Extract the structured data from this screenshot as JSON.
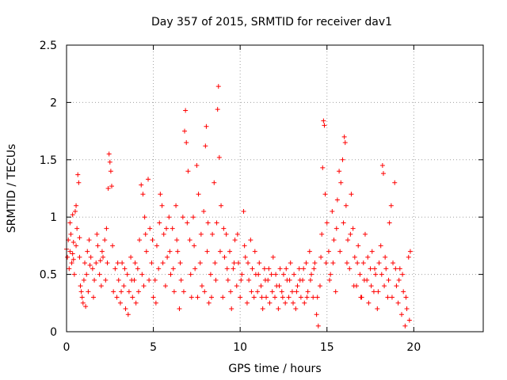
{
  "chart_data": {
    "type": "scatter",
    "title": "Day 357 of 2015, SRMTID for receiver dav1",
    "xlabel": "GPS time / hours",
    "ylabel": "SRMTID / TECUs",
    "xlim": [
      0,
      24
    ],
    "ylim": [
      0,
      2.5
    ],
    "xticks": [
      0,
      5,
      10,
      15,
      20
    ],
    "xtick_labels": [
      "0",
      "5",
      "10",
      "15",
      "20"
    ],
    "yticks": [
      0,
      0.5,
      1,
      1.5,
      2,
      2.5
    ],
    "ytick_labels": [
      "0",
      "0.5",
      "1",
      "1.5",
      "2",
      "2.5"
    ],
    "grid": true,
    "marker": "+",
    "color": "#ff0000",
    "series": [
      {
        "name": "dav1",
        "points": [
          [
            0.0,
            0.72
          ],
          [
            0.05,
            0.65
          ],
          [
            0.1,
            0.8
          ],
          [
            0.15,
            0.55
          ],
          [
            0.2,
            0.7
          ],
          [
            0.25,
            0.85
          ],
          [
            0.3,
            0.6
          ],
          [
            0.35,
            0.68
          ],
          [
            0.4,
            0.78
          ],
          [
            0.45,
            0.5
          ],
          [
            0.5,
            1.05
          ],
          [
            0.55,
            1.1
          ],
          [
            0.6,
            0.9
          ],
          [
            0.65,
            1.37
          ],
          [
            0.7,
            1.3
          ],
          [
            0.75,
            0.65
          ],
          [
            0.8,
            0.4
          ],
          [
            0.85,
            0.35
          ],
          [
            0.9,
            0.3
          ],
          [
            0.95,
            0.25
          ],
          [
            1.0,
            0.45
          ],
          [
            1.05,
            0.6
          ],
          [
            1.1,
            0.22
          ],
          [
            1.15,
            0.5
          ],
          [
            1.2,
            0.7
          ],
          [
            1.3,
            0.8
          ],
          [
            1.4,
            0.65
          ],
          [
            1.5,
            0.55
          ],
          [
            1.6,
            0.45
          ],
          [
            1.7,
            0.6
          ],
          [
            1.8,
            0.75
          ],
          [
            1.9,
            0.5
          ],
          [
            2.0,
            0.4
          ],
          [
            2.1,
            0.65
          ],
          [
            2.2,
            0.8
          ],
          [
            2.3,
            0.9
          ],
          [
            2.4,
            1.25
          ],
          [
            2.45,
            1.55
          ],
          [
            2.5,
            1.48
          ],
          [
            2.55,
            1.4
          ],
          [
            2.6,
            1.27
          ],
          [
            2.7,
            0.35
          ],
          [
            2.8,
            0.55
          ],
          [
            2.9,
            0.3
          ],
          [
            3.0,
            0.45
          ],
          [
            3.1,
            0.25
          ],
          [
            3.2,
            0.6
          ],
          [
            3.3,
            0.4
          ],
          [
            3.4,
            0.2
          ],
          [
            3.5,
            0.5
          ],
          [
            3.6,
            0.35
          ],
          [
            3.7,
            0.65
          ],
          [
            3.8,
            0.3
          ],
          [
            3.9,
            0.45
          ],
          [
            4.0,
            0.25
          ],
          [
            4.1,
            0.55
          ],
          [
            4.2,
            0.8
          ],
          [
            4.3,
            1.28
          ],
          [
            4.4,
            1.2
          ],
          [
            4.5,
            1.0
          ],
          [
            4.6,
            0.7
          ],
          [
            4.7,
            1.33
          ],
          [
            4.8,
            0.9
          ],
          [
            4.9,
            0.6
          ],
          [
            5.0,
            0.3
          ],
          [
            5.1,
            0.45
          ],
          [
            5.2,
            0.75
          ],
          [
            5.3,
            0.55
          ],
          [
            5.4,
            1.2
          ],
          [
            5.5,
            1.1
          ],
          [
            5.6,
            0.85
          ],
          [
            5.7,
            0.4
          ],
          [
            5.8,
            0.65
          ],
          [
            5.9,
            1.0
          ],
          [
            6.0,
            0.5
          ],
          [
            6.1,
            0.9
          ],
          [
            6.2,
            0.35
          ],
          [
            6.3,
            1.1
          ],
          [
            6.4,
            0.7
          ],
          [
            6.5,
            0.2
          ],
          [
            6.6,
            0.45
          ],
          [
            6.7,
            1.0
          ],
          [
            6.8,
            1.75
          ],
          [
            6.85,
            1.93
          ],
          [
            6.9,
            1.65
          ],
          [
            7.0,
            1.4
          ],
          [
            7.1,
            0.8
          ],
          [
            7.2,
            0.3
          ],
          [
            7.3,
            1.0
          ],
          [
            7.4,
            0.55
          ],
          [
            7.5,
            1.45
          ],
          [
            7.6,
            1.2
          ],
          [
            7.7,
            0.6
          ],
          [
            7.8,
            0.4
          ],
          [
            7.9,
            1.05
          ],
          [
            8.0,
            1.62
          ],
          [
            8.05,
            1.79
          ],
          [
            8.1,
            0.7
          ],
          [
            8.2,
            0.25
          ],
          [
            8.3,
            0.5
          ],
          [
            8.4,
            0.85
          ],
          [
            8.5,
            1.3
          ],
          [
            8.6,
            0.45
          ],
          [
            8.7,
            1.94
          ],
          [
            8.75,
            2.14
          ],
          [
            8.8,
            1.52
          ],
          [
            8.9,
            1.1
          ],
          [
            9.0,
            0.3
          ],
          [
            9.1,
            0.65
          ],
          [
            9.2,
            0.85
          ],
          [
            9.3,
            0.45
          ],
          [
            9.4,
            0.7
          ],
          [
            9.5,
            0.2
          ],
          [
            9.6,
            0.55
          ],
          [
            9.7,
            0.8
          ],
          [
            9.8,
            0.4
          ],
          [
            9.9,
            0.6
          ],
          [
            10.0,
            0.3
          ],
          [
            10.1,
            0.5
          ],
          [
            10.2,
            1.05
          ],
          [
            10.3,
            0.65
          ],
          [
            10.4,
            0.25
          ],
          [
            10.5,
            0.45
          ],
          [
            10.6,
            0.8
          ],
          [
            10.7,
            0.55
          ],
          [
            10.8,
            0.3
          ],
          [
            10.9,
            0.5
          ],
          [
            11.0,
            0.35
          ],
          [
            11.1,
            0.6
          ],
          [
            11.2,
            0.4
          ],
          [
            11.3,
            0.2
          ],
          [
            11.4,
            0.55
          ],
          [
            11.5,
            0.3
          ],
          [
            11.6,
            0.45
          ],
          [
            11.7,
            0.25
          ],
          [
            11.8,
            0.5
          ],
          [
            11.9,
            0.65
          ],
          [
            12.0,
            0.3
          ],
          [
            12.1,
            0.4
          ],
          [
            12.2,
            0.2
          ],
          [
            12.3,
            0.55
          ],
          [
            12.4,
            0.35
          ],
          [
            12.5,
            0.5
          ],
          [
            12.6,
            0.25
          ],
          [
            12.7,
            0.45
          ],
          [
            12.8,
            0.3
          ],
          [
            12.9,
            0.6
          ],
          [
            13.0,
            0.35
          ],
          [
            13.1,
            0.5
          ],
          [
            13.2,
            0.2
          ],
          [
            13.3,
            0.4
          ],
          [
            13.4,
            0.55
          ],
          [
            13.5,
            0.3
          ],
          [
            13.6,
            0.45
          ],
          [
            13.7,
            0.25
          ],
          [
            13.8,
            0.6
          ],
          [
            13.9,
            0.35
          ],
          [
            14.0,
            0.7
          ],
          [
            14.1,
            0.5
          ],
          [
            14.2,
            0.3
          ],
          [
            14.3,
            0.6
          ],
          [
            14.4,
            0.15
          ],
          [
            14.5,
            0.05
          ],
          [
            14.6,
            0.4
          ],
          [
            14.7,
            0.85
          ],
          [
            14.75,
            1.43
          ],
          [
            14.8,
            1.84
          ],
          [
            14.85,
            1.8
          ],
          [
            14.9,
            1.2
          ],
          [
            15.0,
            0.95
          ],
          [
            15.1,
            0.7
          ],
          [
            15.2,
            0.5
          ],
          [
            15.3,
            1.05
          ],
          [
            15.4,
            0.8
          ],
          [
            15.5,
            0.35
          ],
          [
            15.6,
            1.15
          ],
          [
            15.7,
            1.4
          ],
          [
            15.8,
            1.3
          ],
          [
            15.9,
            1.5
          ],
          [
            16.0,
            1.7
          ],
          [
            16.05,
            1.65
          ],
          [
            16.1,
            1.1
          ],
          [
            16.2,
            0.8
          ],
          [
            16.3,
            0.55
          ],
          [
            16.4,
            1.2
          ],
          [
            16.5,
            0.9
          ],
          [
            16.6,
            0.65
          ],
          [
            16.7,
            0.4
          ],
          [
            16.8,
            0.75
          ],
          [
            16.9,
            0.5
          ],
          [
            17.0,
            0.3
          ],
          [
            17.1,
            0.6
          ],
          [
            17.2,
            0.85
          ],
          [
            17.3,
            0.45
          ],
          [
            17.4,
            0.25
          ],
          [
            17.5,
            0.55
          ],
          [
            17.6,
            0.7
          ],
          [
            17.7,
            0.35
          ],
          [
            17.8,
            0.5
          ],
          [
            17.9,
            0.2
          ],
          [
            18.0,
            0.6
          ],
          [
            18.1,
            0.75
          ],
          [
            18.2,
            1.45
          ],
          [
            18.25,
            1.38
          ],
          [
            18.3,
            0.4
          ],
          [
            18.4,
            0.55
          ],
          [
            18.5,
            0.3
          ],
          [
            18.6,
            0.95
          ],
          [
            18.7,
            1.1
          ],
          [
            18.8,
            0.6
          ],
          [
            18.9,
            1.3
          ],
          [
            19.0,
            0.4
          ],
          [
            19.1,
            0.25
          ],
          [
            19.2,
            0.55
          ],
          [
            19.3,
            0.15
          ],
          [
            19.4,
            0.35
          ],
          [
            19.5,
            0.05
          ],
          [
            19.6,
            0.2
          ],
          [
            19.7,
            0.65
          ],
          [
            19.8,
            0.7
          ],
          [
            0.2,
            0.95
          ],
          [
            0.35,
            1.02
          ],
          [
            0.55,
            0.75
          ],
          [
            1.25,
            0.35
          ],
          [
            1.75,
            0.85
          ],
          [
            2.05,
            0.7
          ],
          [
            2.35,
            0.6
          ],
          [
            2.65,
            0.75
          ],
          [
            2.95,
            0.6
          ],
          [
            3.15,
            0.35
          ],
          [
            3.35,
            0.55
          ],
          [
            3.55,
            0.15
          ],
          [
            3.75,
            0.45
          ],
          [
            3.95,
            0.6
          ],
          [
            4.15,
            0.35
          ],
          [
            4.35,
            0.5
          ],
          [
            4.55,
            0.85
          ],
          [
            4.75,
            0.45
          ],
          [
            4.95,
            0.8
          ],
          [
            5.15,
            0.25
          ],
          [
            5.35,
            0.95
          ],
          [
            5.55,
            0.6
          ],
          [
            5.75,
            0.9
          ],
          [
            5.95,
            0.7
          ],
          [
            6.15,
            0.55
          ],
          [
            6.35,
            0.8
          ],
          [
            6.55,
            0.6
          ],
          [
            6.75,
            0.35
          ],
          [
            6.95,
            0.95
          ],
          [
            7.15,
            0.5
          ],
          [
            7.35,
            0.75
          ],
          [
            7.55,
            0.3
          ],
          [
            7.75,
            0.85
          ],
          [
            7.95,
            0.35
          ],
          [
            8.15,
            0.95
          ],
          [
            8.35,
            0.3
          ],
          [
            8.55,
            0.6
          ],
          [
            8.65,
            0.95
          ],
          [
            8.85,
            0.7
          ],
          [
            9.05,
            0.9
          ],
          [
            9.25,
            0.55
          ],
          [
            9.45,
            0.35
          ],
          [
            9.65,
            0.6
          ],
          [
            9.85,
            0.85
          ],
          [
            10.05,
            0.45
          ],
          [
            10.25,
            0.75
          ],
          [
            10.45,
            0.6
          ],
          [
            10.65,
            0.35
          ],
          [
            10.85,
            0.7
          ],
          [
            11.05,
            0.5
          ],
          [
            11.25,
            0.3
          ],
          [
            11.45,
            0.45
          ],
          [
            11.65,
            0.55
          ],
          [
            11.85,
            0.35
          ],
          [
            12.05,
            0.5
          ],
          [
            12.25,
            0.4
          ],
          [
            12.45,
            0.3
          ],
          [
            12.65,
            0.55
          ],
          [
            12.85,
            0.45
          ],
          [
            13.05,
            0.25
          ],
          [
            13.25,
            0.35
          ],
          [
            13.45,
            0.45
          ],
          [
            13.65,
            0.55
          ],
          [
            13.85,
            0.3
          ],
          [
            14.05,
            0.45
          ],
          [
            14.25,
            0.55
          ],
          [
            14.45,
            0.3
          ],
          [
            14.65,
            0.65
          ],
          [
            14.95,
            0.6
          ],
          [
            15.15,
            0.45
          ],
          [
            15.35,
            0.6
          ],
          [
            15.55,
            0.9
          ],
          [
            15.75,
            0.7
          ],
          [
            15.95,
            0.95
          ],
          [
            16.15,
            0.6
          ],
          [
            16.35,
            0.85
          ],
          [
            16.55,
            0.4
          ],
          [
            16.75,
            0.6
          ],
          [
            16.95,
            0.3
          ],
          [
            17.15,
            0.45
          ],
          [
            17.35,
            0.65
          ],
          [
            17.55,
            0.4
          ],
          [
            17.75,
            0.55
          ],
          [
            17.95,
            0.35
          ],
          [
            18.15,
            0.5
          ],
          [
            18.35,
            0.65
          ],
          [
            18.55,
            0.45
          ],
          [
            18.75,
            0.3
          ],
          [
            18.95,
            0.55
          ],
          [
            19.15,
            0.45
          ],
          [
            19.35,
            0.5
          ],
          [
            19.55,
            0.3
          ],
          [
            19.75,
            0.1
          ],
          [
            0.4,
            0.63
          ],
          [
            0.75,
            0.82
          ],
          [
            1.35,
            0.58
          ],
          [
            1.55,
            0.3
          ],
          [
            1.95,
            0.62
          ],
          [
            2.25,
            0.45
          ],
          [
            4.45,
            0.4
          ]
        ]
      }
    ]
  }
}
